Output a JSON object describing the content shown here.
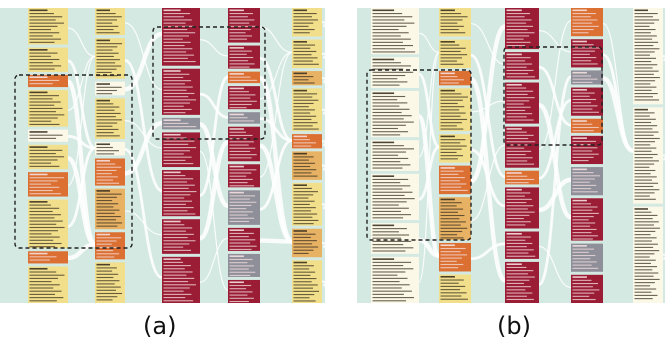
{
  "figure": {
    "panels": [
      {
        "caption": "(a)",
        "columns": [
          {
            "blocks": [
              {
                "color": "yellow",
                "weight": 3
              },
              {
                "color": "yellow",
                "weight": 2
              },
              {
                "color": "orange",
                "weight": 1
              },
              {
                "color": "yellow",
                "weight": 3
              },
              {
                "color": "white",
                "weight": 1
              },
              {
                "color": "yellow",
                "weight": 2
              },
              {
                "color": "orange",
                "weight": 2
              },
              {
                "color": "yellow",
                "weight": 4
              },
              {
                "color": "orange",
                "weight": 1
              },
              {
                "color": "yellow",
                "weight": 3
              }
            ]
          },
          {
            "blocks": [
              {
                "color": "yellow",
                "weight": 2
              },
              {
                "color": "yellow",
                "weight": 3
              },
              {
                "color": "white",
                "weight": 1
              },
              {
                "color": "yellow",
                "weight": 3
              },
              {
                "color": "white",
                "weight": 1
              },
              {
                "color": "orange",
                "weight": 2
              },
              {
                "color": "tan",
                "weight": 3
              },
              {
                "color": "orange",
                "weight": 2
              },
              {
                "color": "yellow",
                "weight": 3
              }
            ]
          },
          {
            "blocks": [
              {
                "color": "red",
                "weight": 5
              },
              {
                "color": "red",
                "weight": 4
              },
              {
                "color": "gray",
                "weight": 1
              },
              {
                "color": "red",
                "weight": 3
              },
              {
                "color": "red",
                "weight": 4
              },
              {
                "color": "red",
                "weight": 3
              },
              {
                "color": "red",
                "weight": 4
              }
            ]
          },
          {
            "blocks": [
              {
                "color": "red",
                "weight": 3
              },
              {
                "color": "red",
                "weight": 2
              },
              {
                "color": "orange",
                "weight": 1
              },
              {
                "color": "red",
                "weight": 2
              },
              {
                "color": "gray",
                "weight": 1
              },
              {
                "color": "red",
                "weight": 3
              },
              {
                "color": "red",
                "weight": 2
              },
              {
                "color": "gray",
                "weight": 3
              },
              {
                "color": "red",
                "weight": 2
              },
              {
                "color": "gray",
                "weight": 2
              },
              {
                "color": "red",
                "weight": 2
              }
            ]
          },
          {
            "blocks": [
              {
                "color": "yellow",
                "weight": 2
              },
              {
                "color": "yellow",
                "weight": 2
              },
              {
                "color": "tan",
                "weight": 1
              },
              {
                "color": "yellow",
                "weight": 3
              },
              {
                "color": "orange",
                "weight": 1
              },
              {
                "color": "tan",
                "weight": 2
              },
              {
                "color": "yellow",
                "weight": 3
              },
              {
                "color": "tan",
                "weight": 2
              },
              {
                "color": "yellow",
                "weight": 3
              }
            ]
          }
        ]
      },
      {
        "caption": "(b)",
        "columns": [
          {
            "blocks": [
              {
                "color": "white",
                "weight": 3
              },
              {
                "color": "white",
                "weight": 2
              },
              {
                "color": "white",
                "weight": 3
              },
              {
                "color": "white",
                "weight": 2
              },
              {
                "color": "white",
                "weight": 3
              },
              {
                "color": "white",
                "weight": 2
              },
              {
                "color": "white",
                "weight": 3
              }
            ]
          },
          {
            "blocks": [
              {
                "color": "yellow",
                "weight": 2
              },
              {
                "color": "yellow",
                "weight": 2
              },
              {
                "color": "orange",
                "weight": 1
              },
              {
                "color": "yellow",
                "weight": 3
              },
              {
                "color": "yellow",
                "weight": 2
              },
              {
                "color": "orange",
                "weight": 2
              },
              {
                "color": "tan",
                "weight": 3
              },
              {
                "color": "orange",
                "weight": 2
              },
              {
                "color": "yellow",
                "weight": 2
              }
            ]
          },
          {
            "blocks": [
              {
                "color": "red",
                "weight": 3
              },
              {
                "color": "red",
                "weight": 2
              },
              {
                "color": "red",
                "weight": 3
              },
              {
                "color": "red",
                "weight": 3
              },
              {
                "color": "orange",
                "weight": 1
              },
              {
                "color": "red",
                "weight": 3
              },
              {
                "color": "red",
                "weight": 2
              },
              {
                "color": "red",
                "weight": 3
              }
            ]
          },
          {
            "blocks": [
              {
                "color": "orange",
                "weight": 2
              },
              {
                "color": "red",
                "weight": 2
              },
              {
                "color": "gray",
                "weight": 1
              },
              {
                "color": "red",
                "weight": 2
              },
              {
                "color": "orange",
                "weight": 1
              },
              {
                "color": "red",
                "weight": 2
              },
              {
                "color": "gray",
                "weight": 2
              },
              {
                "color": "red",
                "weight": 3
              },
              {
                "color": "gray",
                "weight": 2
              },
              {
                "color": "red",
                "weight": 2
              }
            ]
          },
          {
            "blocks": [
              {
                "color": "white",
                "weight": 4
              },
              {
                "color": "white",
                "weight": 4
              },
              {
                "color": "white",
                "weight": 4
              }
            ]
          }
        ]
      }
    ],
    "colors": {
      "background": "#d5e9e3",
      "yellow": "#f1df8c",
      "tan": "#e8b265",
      "orange": "#dc6f32",
      "red": "#9a1d35",
      "gray": "#8f8f9a",
      "white": "#fbf8e8",
      "flow": "#ffffff",
      "text_dark": "#3a3020",
      "text_light": "#f4e0e0",
      "selection": "#222222"
    }
  }
}
